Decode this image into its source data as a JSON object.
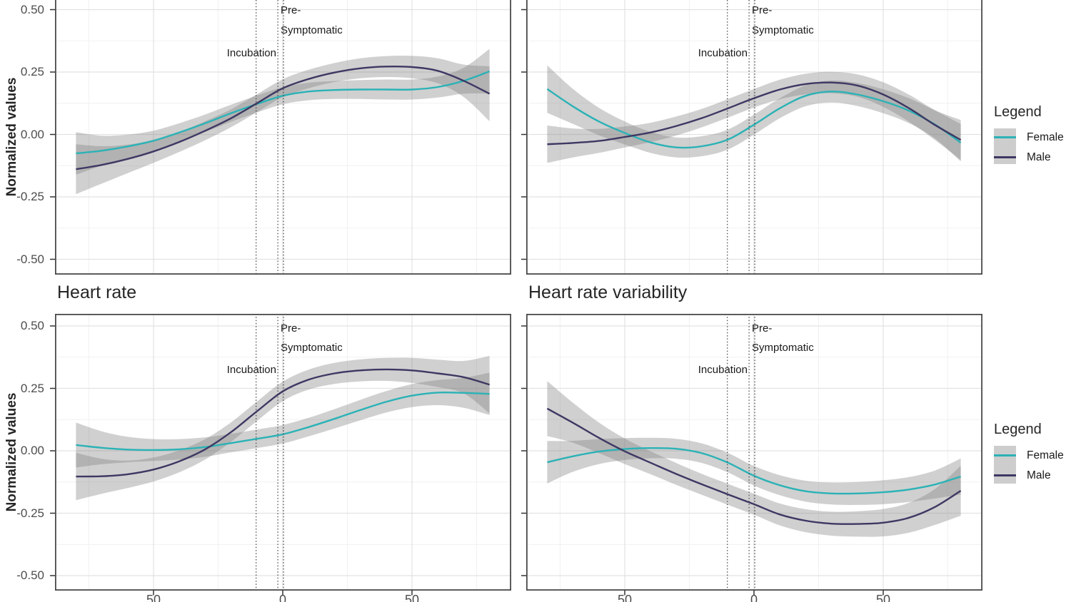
{
  "figure": {
    "ylabel": "Normalized values",
    "bottom_titles": [
      "Heart rate",
      "Heart rate variability"
    ],
    "annotations": {
      "incubation": "Incubation",
      "pre1": "Pre-",
      "pre2": "Symptomatic"
    },
    "y_tick_labels": [
      "0.50",
      "0.25",
      "0.00",
      "-0.25",
      "-0.50"
    ],
    "x_tick_labels": [
      "50",
      "0",
      "50"
    ],
    "legend": {
      "title": "Legend",
      "items": [
        {
          "label": "Female",
          "color": "#2bb2b6"
        },
        {
          "label": "Male",
          "color": "#3d3863"
        }
      ]
    },
    "colors": {
      "female": "#2bb2b6",
      "male": "#3d3863",
      "ribbon": "#808080",
      "grid_major": "#e2e2e2",
      "grid_minor": "#f1f1f1",
      "border": "#4a4a4a",
      "dotted": "#3f3f3f",
      "tick": "#333333"
    }
  },
  "chart_data": [
    {
      "type": "line",
      "title": "",
      "position": "top-left",
      "ylabel": "Normalized values",
      "x": [
        -80,
        -70,
        -60,
        -50,
        -40,
        -30,
        -20,
        -10,
        0,
        10,
        20,
        30,
        40,
        50,
        60,
        70,
        80
      ],
      "xlim": [
        -88,
        88
      ],
      "ylim": [
        -0.56,
        0.54
      ],
      "x_ticks": [
        -50,
        0,
        50
      ],
      "y_ticks": [
        0.5,
        0.25,
        0.0,
        -0.25,
        -0.5
      ],
      "vlines": [
        -10.3,
        -1.9,
        0.3
      ],
      "vline_labels": [
        "Incubation",
        "Pre-",
        "Symptomatic"
      ],
      "series": [
        {
          "name": "Female",
          "values": [
            -0.076,
            -0.065,
            -0.048,
            -0.025,
            0.008,
            0.045,
            0.085,
            0.122,
            0.155,
            0.172,
            0.178,
            0.18,
            0.18,
            0.18,
            0.19,
            0.215,
            0.253
          ],
          "ci": [
            0.085,
            0.06,
            0.047,
            0.04,
            0.037,
            0.035,
            0.034,
            0.034,
            0.034,
            0.035,
            0.036,
            0.038,
            0.04,
            0.04,
            0.042,
            0.052,
            0.09
          ]
        },
        {
          "name": "Male",
          "values": [
            -0.139,
            -0.122,
            -0.098,
            -0.068,
            -0.03,
            0.015,
            0.065,
            0.125,
            0.185,
            0.222,
            0.248,
            0.265,
            0.272,
            0.27,
            0.255,
            0.215,
            0.163
          ],
          "ci": [
            0.1,
            0.075,
            0.057,
            0.046,
            0.04,
            0.038,
            0.036,
            0.036,
            0.036,
            0.037,
            0.038,
            0.04,
            0.042,
            0.045,
            0.05,
            0.065,
            0.11
          ]
        }
      ]
    },
    {
      "type": "line",
      "title": "",
      "position": "top-right",
      "x": [
        -80,
        -70,
        -60,
        -50,
        -40,
        -30,
        -20,
        -10,
        0,
        10,
        20,
        30,
        40,
        50,
        60,
        70,
        80
      ],
      "xlim": [
        -88,
        88
      ],
      "ylim": [
        -0.56,
        0.54
      ],
      "x_ticks": [
        -50,
        0,
        50
      ],
      "y_ticks": [
        0.5,
        0.25,
        0.0,
        -0.25,
        -0.5
      ],
      "vlines": [
        -10.3,
        -1.9,
        0.3
      ],
      "vline_labels": [
        "Incubation",
        "Pre-",
        "Symptomatic"
      ],
      "series": [
        {
          "name": "Female",
          "values": [
            0.182,
            0.112,
            0.052,
            0.006,
            -0.032,
            -0.052,
            -0.047,
            -0.02,
            0.039,
            0.105,
            0.155,
            0.172,
            0.16,
            0.133,
            0.095,
            0.04,
            -0.033
          ],
          "ci": [
            0.095,
            0.07,
            0.055,
            0.046,
            0.042,
            0.04,
            0.04,
            0.04,
            0.04,
            0.04,
            0.042,
            0.044,
            0.046,
            0.048,
            0.05,
            0.056,
            0.075
          ]
        },
        {
          "name": "Male",
          "values": [
            -0.039,
            -0.034,
            -0.026,
            -0.01,
            0.008,
            0.034,
            0.066,
            0.105,
            0.145,
            0.18,
            0.202,
            0.208,
            0.196,
            0.16,
            0.105,
            0.038,
            -0.022
          ],
          "ci": [
            0.075,
            0.058,
            0.048,
            0.042,
            0.039,
            0.038,
            0.037,
            0.037,
            0.037,
            0.039,
            0.041,
            0.043,
            0.045,
            0.049,
            0.054,
            0.06,
            0.08
          ]
        }
      ]
    },
    {
      "type": "line",
      "title": "Heart rate",
      "position": "bottom-left",
      "ylabel": "Normalized values",
      "x": [
        -80,
        -70,
        -60,
        -50,
        -40,
        -30,
        -20,
        -10,
        0,
        10,
        20,
        30,
        40,
        50,
        60,
        70,
        80
      ],
      "xlim": [
        -88,
        88
      ],
      "ylim": [
        -0.56,
        0.54
      ],
      "x_ticks": [
        -50,
        0,
        50
      ],
      "y_ticks": [
        0.5,
        0.25,
        0.0,
        -0.25,
        -0.5
      ],
      "vlines": [
        -10.3,
        -1.9,
        0.3
      ],
      "vline_labels": [
        "Incubation",
        "Pre-",
        "Symptomatic"
      ],
      "series": [
        {
          "name": "Female",
          "values": [
            0.023,
            0.012,
            0.005,
            0.003,
            0.006,
            0.015,
            0.031,
            0.048,
            0.066,
            0.095,
            0.128,
            0.163,
            0.196,
            0.221,
            0.233,
            0.232,
            0.228
          ],
          "ci": [
            0.09,
            0.066,
            0.051,
            0.044,
            0.041,
            0.039,
            0.037,
            0.037,
            0.037,
            0.037,
            0.039,
            0.041,
            0.043,
            0.046,
            0.05,
            0.06,
            0.085
          ]
        },
        {
          "name": "Male",
          "values": [
            -0.103,
            -0.102,
            -0.094,
            -0.075,
            -0.042,
            0.006,
            0.075,
            0.158,
            0.238,
            0.285,
            0.31,
            0.322,
            0.326,
            0.322,
            0.31,
            0.295,
            0.265
          ],
          "ci": [
            0.095,
            0.07,
            0.055,
            0.048,
            0.044,
            0.041,
            0.039,
            0.039,
            0.039,
            0.04,
            0.042,
            0.044,
            0.046,
            0.05,
            0.055,
            0.065,
            0.115
          ]
        }
      ]
    },
    {
      "type": "line",
      "title": "Heart rate variability",
      "position": "bottom-right",
      "x": [
        -80,
        -70,
        -60,
        -50,
        -40,
        -30,
        -20,
        -10,
        0,
        10,
        20,
        30,
        40,
        50,
        60,
        70,
        80
      ],
      "xlim": [
        -88,
        88
      ],
      "ylim": [
        -0.56,
        0.54
      ],
      "x_ticks": [
        -50,
        0,
        50
      ],
      "y_ticks": [
        0.5,
        0.25,
        0.0,
        -0.25,
        -0.5
      ],
      "vlines": [
        -10.3,
        -1.9,
        0.3
      ],
      "vline_labels": [
        "Incubation",
        "Pre-",
        "Symptomatic"
      ],
      "series": [
        {
          "name": "Female",
          "values": [
            -0.046,
            -0.022,
            -0.003,
            0.007,
            0.011,
            0.008,
            -0.01,
            -0.048,
            -0.1,
            -0.138,
            -0.162,
            -0.171,
            -0.171,
            -0.166,
            -0.155,
            -0.135,
            -0.103
          ],
          "ci": [
            0.085,
            0.062,
            0.05,
            0.044,
            0.041,
            0.04,
            0.039,
            0.039,
            0.039,
            0.04,
            0.042,
            0.044,
            0.046,
            0.048,
            0.05,
            0.056,
            0.072
          ]
        },
        {
          "name": "Male",
          "values": [
            0.169,
            0.112,
            0.052,
            -0.002,
            -0.048,
            -0.093,
            -0.135,
            -0.175,
            -0.214,
            -0.255,
            -0.28,
            -0.292,
            -0.293,
            -0.288,
            -0.268,
            -0.225,
            -0.16
          ],
          "ci": [
            0.11,
            0.08,
            0.061,
            0.051,
            0.046,
            0.044,
            0.042,
            0.042,
            0.042,
            0.044,
            0.046,
            0.048,
            0.051,
            0.055,
            0.06,
            0.072,
            0.1
          ]
        }
      ]
    }
  ]
}
